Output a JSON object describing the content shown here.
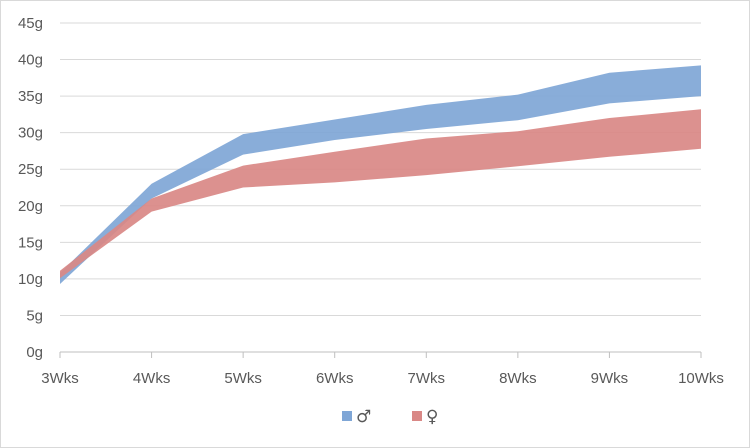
{
  "chart_data": {
    "type": "area",
    "categories": [
      "3Wks",
      "4Wks",
      "5Wks",
      "6Wks",
      "7Wks",
      "8Wks",
      "9Wks",
      "10Wks"
    ],
    "y_tick_labels": [
      "0g",
      "5g",
      "10g",
      "15g",
      "20g",
      "25g",
      "30g",
      "35g",
      "40g",
      "45g"
    ],
    "ylim": [
      0,
      45
    ],
    "y_unit": "g",
    "grid": true,
    "legend_position": "bottom",
    "series": [
      {
        "name": "♂",
        "color": "#7fa6d6",
        "lower": [
          9.3,
          21.0,
          27.0,
          29.0,
          30.5,
          31.7,
          34.0,
          35.0
        ],
        "upper": [
          10.8,
          23.0,
          29.8,
          31.8,
          33.8,
          35.2,
          38.2,
          39.2
        ]
      },
      {
        "name": "♀",
        "color": "#d98886",
        "lower": [
          10.1,
          19.2,
          22.5,
          23.2,
          24.2,
          25.4,
          26.7,
          27.8
        ],
        "upper": [
          11.1,
          21.0,
          25.5,
          27.4,
          29.2,
          30.2,
          32.0,
          33.2
        ]
      }
    ]
  }
}
